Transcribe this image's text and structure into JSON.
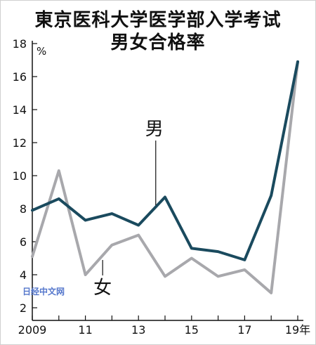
{
  "chart_data": {
    "type": "line",
    "title": [
      "東京医科大学医学部入学考试",
      "男女合格率"
    ],
    "unit": "%",
    "x": [
      2009,
      2010,
      2011,
      2012,
      2013,
      2014,
      2015,
      2016,
      2017,
      2018,
      2019
    ],
    "x_tick_labels": [
      {
        "x": 2009,
        "label": "2009"
      },
      {
        "x": 2011,
        "label": "11"
      },
      {
        "x": 2013,
        "label": "13"
      },
      {
        "x": 2015,
        "label": "15"
      },
      {
        "x": 2017,
        "label": "17"
      },
      {
        "x": 2019,
        "label": "19年"
      }
    ],
    "y_ticks": [
      2,
      4,
      6,
      8,
      10,
      12,
      14,
      16,
      18
    ],
    "ylim": [
      2,
      18
    ],
    "series": [
      {
        "name": "男",
        "color": "#1a4a5e",
        "values": [
          7.9,
          8.6,
          7.3,
          7.7,
          7.0,
          8.7,
          5.6,
          5.4,
          4.9,
          8.8,
          16.9
        ]
      },
      {
        "name": "女",
        "color": "#a8a8ac",
        "values": [
          5.1,
          10.3,
          4.0,
          5.8,
          6.4,
          3.9,
          5.0,
          3.9,
          4.3,
          2.9,
          16.9
        ]
      }
    ],
    "grid": false
  },
  "watermark": "日经中文网"
}
